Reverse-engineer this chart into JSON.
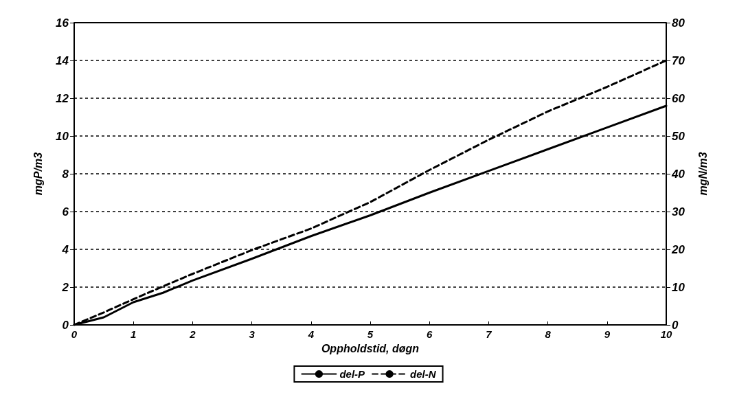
{
  "chart_data": {
    "type": "line",
    "xlabel": "Oppholdstid, døgn",
    "ylabel": "mgP/m3",
    "y2label": "mgN/m3",
    "xlim": [
      0,
      10
    ],
    "xticks": [
      0,
      1,
      2,
      3,
      4,
      5,
      6,
      7,
      8,
      9,
      10
    ],
    "ylim": [
      0,
      16
    ],
    "yticks": [
      0,
      2,
      4,
      6,
      8,
      10,
      12,
      14,
      16
    ],
    "y2lim": [
      0,
      80
    ],
    "y2ticks": [
      0,
      10,
      20,
      30,
      40,
      50,
      60,
      70,
      80
    ],
    "grid": "y",
    "legend": "bottom",
    "marker": "none",
    "series": [
      {
        "name": "del-P",
        "color": "#000000",
        "line_style": "solid",
        "x": [
          0,
          0.5,
          1,
          1.5,
          2,
          3,
          4,
          5,
          6,
          7,
          8,
          9,
          10
        ],
        "values": [
          0,
          0.4,
          1.2,
          1.7,
          2.35,
          3.5,
          4.7,
          5.8,
          7.0,
          8.15,
          9.3,
          10.45,
          11.6
        ]
      },
      {
        "name": "del-N",
        "color": "#000000",
        "line_style": "dashed",
        "axis": "y2",
        "x": [
          0,
          0.5,
          1,
          1.5,
          2,
          3,
          4,
          5,
          6,
          7,
          8,
          9,
          10
        ],
        "values": [
          0,
          3.3,
          6.8,
          10.2,
          13.5,
          19.8,
          25.5,
          32.5,
          41,
          49,
          56.5,
          63,
          70
        ]
      }
    ]
  }
}
